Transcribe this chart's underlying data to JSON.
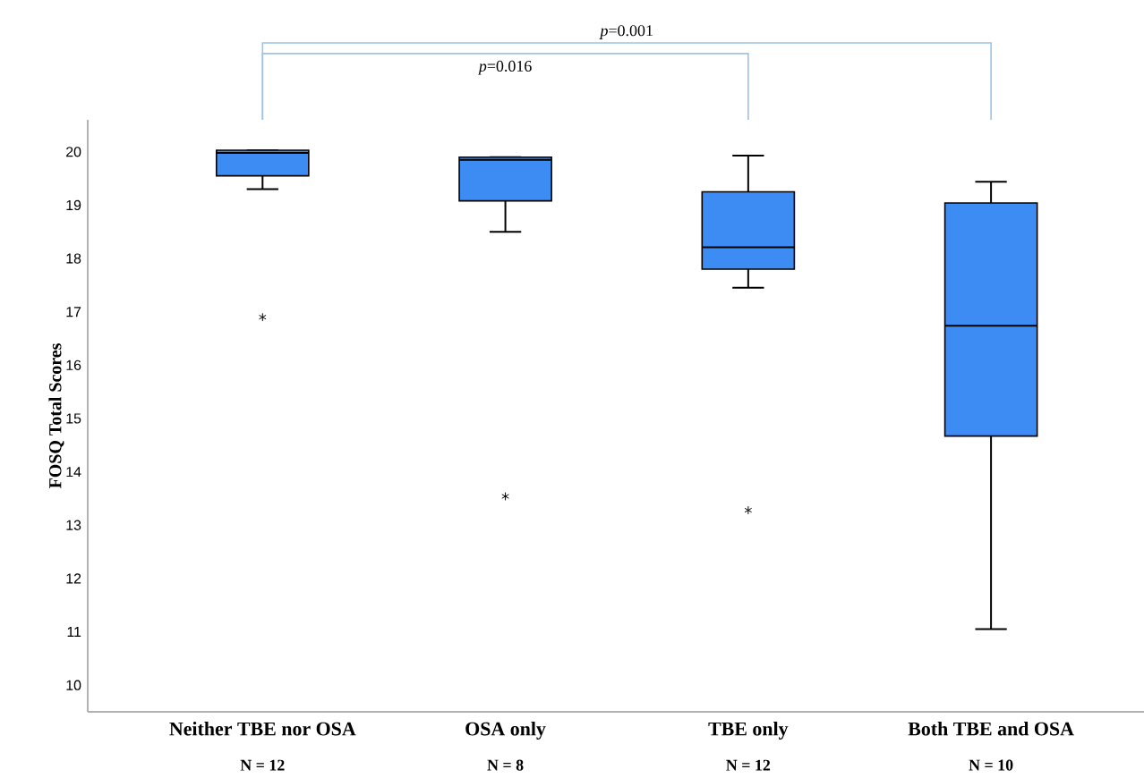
{
  "chart_data": {
    "type": "box",
    "ylabel": "FOSQ Total Scores",
    "categories": [
      "Neither TBE nor OSA",
      "OSA only",
      "TBE only",
      "Both TBE and OSA"
    ],
    "boxes": [
      {
        "low": 19.3,
        "q1": 19.55,
        "median": 19.98,
        "q3": 20.03,
        "high": 20.03,
        "outliers": [
          16.9
        ]
      },
      {
        "low": 18.5,
        "q1": 19.08,
        "median": 19.85,
        "q3": 19.9,
        "high": 19.9,
        "outliers": [
          13.54
        ]
      },
      {
        "low": 17.45,
        "q1": 17.8,
        "median": 18.21,
        "q3": 19.25,
        "high": 19.93,
        "outliers": [
          13.28
        ]
      },
      {
        "low": 11.05,
        "q1": 14.67,
        "median": 16.74,
        "q3": 19.04,
        "high": 19.44
      }
    ],
    "color": "#3c8cf4",
    "ylim": [
      9.5,
      20.6
    ],
    "yticks": [
      10,
      11,
      12,
      13,
      14,
      15,
      16,
      17,
      18,
      19,
      20
    ],
    "annotations": [
      "*p*=0.001",
      "*p*=0.016",
      "N = 12",
      "N = 8",
      "N = 12",
      "N = 10"
    ]
  }
}
